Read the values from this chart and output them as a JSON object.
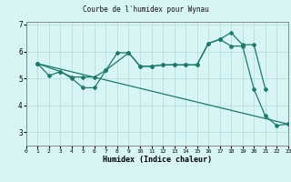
{
  "title": "Courbe de l'humidex pour Wynau",
  "xlabel": "Humidex (Indice chaleur)",
  "bg_color": "#d8f5f5",
  "grid_color": "#b8dede",
  "line_color": "#1a7a6e",
  "xlim": [
    0,
    23
  ],
  "ylim": [
    2.5,
    7.1
  ],
  "xticks": [
    0,
    1,
    2,
    3,
    4,
    5,
    6,
    7,
    8,
    9,
    10,
    11,
    12,
    13,
    14,
    15,
    16,
    17,
    18,
    19,
    20,
    21,
    22,
    23
  ],
  "yticks": [
    3,
    4,
    5,
    6,
    7
  ],
  "line1_x": [
    1,
    2,
    3,
    4,
    5,
    6,
    7,
    8,
    9,
    10,
    11,
    12,
    13,
    14,
    15,
    16,
    17,
    18,
    19,
    20,
    21,
    22,
    23
  ],
  "line1_y": [
    5.55,
    5.1,
    5.25,
    5.0,
    4.65,
    4.65,
    5.3,
    5.95,
    5.95,
    5.45,
    5.45,
    5.5,
    5.5,
    5.5,
    5.5,
    6.3,
    6.45,
    6.2,
    6.2,
    4.6,
    3.6,
    3.25,
    3.3
  ],
  "line2_x": [
    1,
    3,
    4,
    5,
    6,
    7,
    9,
    10,
    11,
    12,
    13,
    14,
    15,
    16,
    17,
    18,
    19,
    20,
    21
  ],
  "line2_y": [
    5.55,
    5.25,
    5.05,
    5.05,
    5.05,
    5.3,
    5.95,
    5.45,
    5.45,
    5.5,
    5.5,
    5.5,
    5.5,
    6.3,
    6.45,
    6.7,
    6.25,
    6.25,
    4.6
  ],
  "line3_x": [
    1,
    23
  ],
  "line3_y": [
    5.55,
    3.3
  ]
}
